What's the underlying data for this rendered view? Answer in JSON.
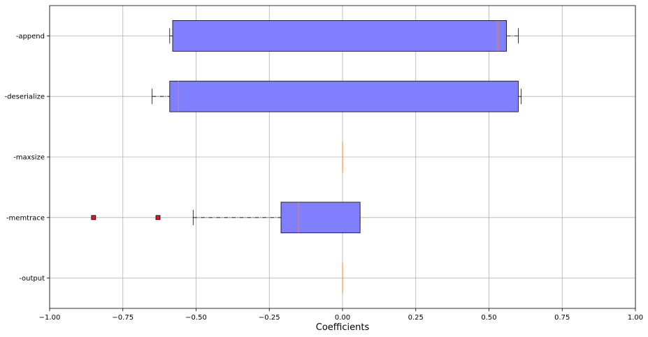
{
  "chart_data": {
    "type": "boxplot",
    "orientation": "horizontal",
    "xlabel": "Coefficients",
    "xlim": [
      -1.0,
      1.0
    ],
    "xticks": [
      -1.0,
      -0.75,
      -0.5,
      -0.25,
      0.0,
      0.25,
      0.5,
      0.75,
      1.0
    ],
    "xtick_labels": [
      "−1.00",
      "−0.75",
      "−0.50",
      "−0.25",
      "0.00",
      "0.25",
      "0.50",
      "0.75",
      "1.00"
    ],
    "grid": true,
    "categories": [
      "-append",
      "-deserialize",
      "-maxsize",
      "-memtrace",
      "-output"
    ],
    "boxes": [
      {
        "label": "-append",
        "whisker_low": -0.59,
        "q1": -0.58,
        "median": 0.53,
        "q3": 0.56,
        "whisker_high": 0.6,
        "outliers": []
      },
      {
        "label": "-deserialize",
        "whisker_low": -0.65,
        "q1": -0.59,
        "median": -0.56,
        "q3": 0.6,
        "whisker_high": 0.61,
        "outliers": []
      },
      {
        "label": "-maxsize",
        "whisker_low": 0.0,
        "q1": 0.0,
        "median": 0.0,
        "q3": 0.0,
        "whisker_high": 0.0,
        "outliers": []
      },
      {
        "label": "-memtrace",
        "whisker_low": -0.51,
        "q1": -0.21,
        "median": -0.15,
        "q3": 0.06,
        "whisker_high": 0.06,
        "outliers": [
          -0.85,
          -0.63
        ]
      },
      {
        "label": "-output",
        "whisker_low": 0.0,
        "q1": 0.0,
        "median": 0.0,
        "q3": 0.0,
        "whisker_high": 0.0,
        "outliers": []
      }
    ],
    "colors": {
      "box_fill": "#8080ff",
      "box_edge": "#000000",
      "median": "#ff7f0e",
      "outlier_fill": "#e8141a",
      "grid": "#b0b0b0"
    }
  }
}
